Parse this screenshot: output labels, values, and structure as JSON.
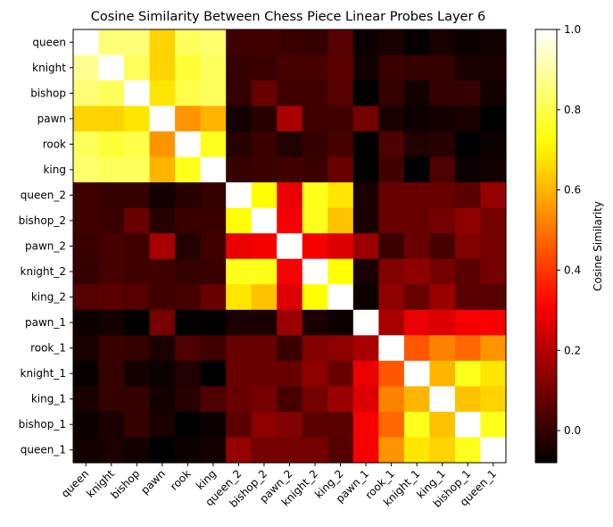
{
  "chart_data": {
    "type": "heatmap",
    "title": "Cosine Similarity Between Chess Piece Linear Probes Layer 6",
    "xlabel": "",
    "ylabel": "",
    "labels": [
      "queen",
      "knight",
      "bishop",
      "pawn",
      "rook",
      "king",
      "queen_2",
      "bishop_2",
      "pawn_2",
      "knight_2",
      "king_2",
      "pawn_1",
      "rook_1",
      "knight_1",
      "king_1",
      "bishop_1",
      "queen_1"
    ],
    "colormap": "hot",
    "vmin": -0.08,
    "vmax": 1.0,
    "colorbar": {
      "label": "Cosine Similarity",
      "ticks": [
        0.0,
        0.2,
        0.4,
        0.6,
        0.8,
        1.0
      ],
      "tick_labels": [
        "0.0",
        "0.2",
        "0.4",
        "0.6",
        "0.8",
        "1.0"
      ]
    },
    "values": [
      [
        1.0,
        0.85,
        0.85,
        0.65,
        0.82,
        0.84,
        0.02,
        0.02,
        0.01,
        0.0,
        0.05,
        -0.06,
        -0.04,
        -0.07,
        -0.04,
        -0.06,
        -0.05
      ],
      [
        0.88,
        1.0,
        0.82,
        0.65,
        0.78,
        0.82,
        0.0,
        0.01,
        0.03,
        0.03,
        0.06,
        -0.05,
        0.01,
        0.0,
        0.0,
        -0.04,
        -0.04
      ],
      [
        0.85,
        0.82,
        1.0,
        0.68,
        0.8,
        0.82,
        0.0,
        0.08,
        0.02,
        0.02,
        0.05,
        -0.08,
        0.0,
        -0.05,
        0.0,
        0.0,
        -0.05
      ],
      [
        0.65,
        0.65,
        0.68,
        1.0,
        0.55,
        0.6,
        -0.05,
        -0.02,
        0.18,
        0.02,
        0.02,
        0.1,
        -0.04,
        -0.06,
        -0.05,
        -0.04,
        -0.08
      ],
      [
        0.82,
        0.78,
        0.8,
        0.55,
        1.0,
        0.75,
        -0.02,
        0.01,
        -0.03,
        0.0,
        0.03,
        -0.08,
        0.04,
        -0.03,
        -0.02,
        -0.08,
        -0.06
      ],
      [
        0.84,
        0.82,
        0.82,
        0.6,
        0.75,
        1.0,
        0.0,
        0.01,
        0.02,
        0.01,
        0.08,
        -0.08,
        0.02,
        -0.08,
        0.04,
        -0.06,
        -0.05
      ],
      [
        0.02,
        0.0,
        0.0,
        -0.05,
        -0.02,
        0.0,
        1.0,
        0.72,
        0.28,
        0.75,
        0.68,
        -0.04,
        0.08,
        0.08,
        0.08,
        0.06,
        0.15
      ],
      [
        0.02,
        0.01,
        0.08,
        -0.02,
        0.01,
        0.01,
        0.72,
        1.0,
        0.3,
        0.75,
        0.62,
        -0.04,
        0.08,
        0.08,
        0.1,
        0.14,
        0.1
      ],
      [
        0.01,
        0.03,
        0.02,
        0.18,
        -0.03,
        0.02,
        0.28,
        0.3,
        1.0,
        0.3,
        0.26,
        0.16,
        0.01,
        0.08,
        0.03,
        0.12,
        0.1
      ],
      [
        0.0,
        0.03,
        0.02,
        0.02,
        0.0,
        0.01,
        0.75,
        0.75,
        0.3,
        1.0,
        0.72,
        -0.04,
        0.12,
        0.14,
        0.1,
        0.06,
        0.1
      ],
      [
        0.05,
        0.06,
        0.05,
        0.02,
        0.03,
        0.08,
        0.68,
        0.62,
        0.26,
        0.72,
        1.0,
        -0.06,
        0.14,
        0.08,
        0.16,
        0.06,
        0.05
      ],
      [
        -0.06,
        -0.05,
        -0.08,
        0.1,
        -0.08,
        -0.08,
        -0.04,
        -0.04,
        0.16,
        -0.04,
        -0.06,
        1.0,
        0.18,
        0.28,
        0.26,
        0.3,
        0.3
      ],
      [
        -0.04,
        0.01,
        0.0,
        -0.04,
        0.04,
        0.02,
        0.08,
        0.08,
        0.01,
        0.12,
        0.14,
        0.18,
        1.0,
        0.45,
        0.52,
        0.48,
        0.55
      ],
      [
        -0.07,
        0.0,
        -0.05,
        -0.06,
        -0.03,
        -0.08,
        0.08,
        0.08,
        0.08,
        0.14,
        0.08,
        0.28,
        0.45,
        1.0,
        0.6,
        0.75,
        0.68
      ],
      [
        -0.04,
        0.0,
        0.0,
        -0.05,
        -0.02,
        0.04,
        0.08,
        0.1,
        0.03,
        0.1,
        0.16,
        0.26,
        0.52,
        0.6,
        1.0,
        0.62,
        0.65
      ],
      [
        -0.06,
        -0.04,
        0.0,
        -0.04,
        -0.08,
        -0.06,
        0.06,
        0.14,
        0.12,
        0.06,
        0.06,
        0.3,
        0.48,
        0.75,
        0.62,
        1.0,
        0.75
      ],
      [
        -0.05,
        -0.04,
        -0.05,
        -0.08,
        -0.06,
        -0.05,
        0.15,
        0.1,
        0.1,
        0.1,
        0.05,
        0.3,
        0.55,
        0.68,
        0.65,
        0.75,
        1.0
      ]
    ]
  }
}
